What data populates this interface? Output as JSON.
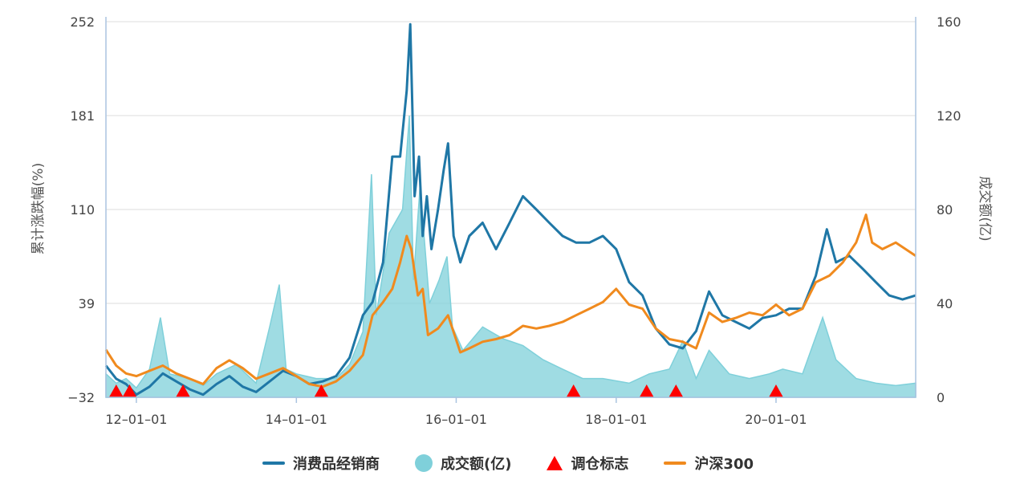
{
  "colors": {
    "industry": "#1f77a6",
    "volume": "#7fd0da",
    "marker": "#ff0000",
    "hs300": "#f08a1e",
    "grid": "#dddddd",
    "axis": "#aac4e0"
  },
  "legend": {
    "industry": "消费品经销商",
    "volume": "成交额(亿)",
    "marker": "调仓标志",
    "hs300": "沪深300"
  },
  "chart_data": {
    "type": "line",
    "ylabel_left": "累计涨跌幅(%)",
    "ylabel_right": "成交额(亿)",
    "left_ticks": [
      "252",
      "181",
      "110",
      "39",
      "−32"
    ],
    "right_ticks": [
      "160",
      "120",
      "80",
      "40",
      "0"
    ],
    "left_range": [
      -32,
      252
    ],
    "right_range": [
      0,
      160
    ],
    "x_ticks": [
      {
        "label": "12–01–01",
        "date": "2012-01-01"
      },
      {
        "label": "14–01–01",
        "date": "2014-01-01"
      },
      {
        "label": "16–01–01",
        "date": "2016-01-01"
      },
      {
        "label": "18–01–01",
        "date": "2018-01-01"
      },
      {
        "label": "20–01–01",
        "date": "2020-01-01"
      }
    ],
    "x_range": [
      "2011-08-15",
      "2021-09-30"
    ],
    "series": [
      {
        "name": "消费品经销商",
        "axis": "left",
        "points": [
          [
            "2011-08-15",
            -8
          ],
          [
            "2011-10-01",
            -18
          ],
          [
            "2011-11-15",
            -22
          ],
          [
            "2012-01-01",
            -30
          ],
          [
            "2012-03-01",
            -24
          ],
          [
            "2012-05-01",
            -14
          ],
          [
            "2012-07-01",
            -20
          ],
          [
            "2012-09-01",
            -26
          ],
          [
            "2012-11-01",
            -30
          ],
          [
            "2013-01-01",
            -22
          ],
          [
            "2013-03-01",
            -16
          ],
          [
            "2013-05-01",
            -24
          ],
          [
            "2013-07-01",
            -28
          ],
          [
            "2013-09-01",
            -20
          ],
          [
            "2013-11-01",
            -12
          ],
          [
            "2014-01-01",
            -16
          ],
          [
            "2014-03-01",
            -22
          ],
          [
            "2014-05-01",
            -20
          ],
          [
            "2014-07-01",
            -16
          ],
          [
            "2014-09-01",
            -2
          ],
          [
            "2014-11-01",
            30
          ],
          [
            "2014-12-15",
            40
          ],
          [
            "2015-02-01",
            70
          ],
          [
            "2015-03-15",
            150
          ],
          [
            "2015-04-20",
            150
          ],
          [
            "2015-05-20",
            200
          ],
          [
            "2015-06-05",
            250
          ],
          [
            "2015-06-25",
            120
          ],
          [
            "2015-07-15",
            150
          ],
          [
            "2015-08-01",
            90
          ],
          [
            "2015-08-20",
            120
          ],
          [
            "2015-09-10",
            80
          ],
          [
            "2015-10-10",
            110
          ],
          [
            "2015-11-05",
            140
          ],
          [
            "2015-11-25",
            160
          ],
          [
            "2015-12-20",
            90
          ],
          [
            "2016-01-20",
            70
          ],
          [
            "2016-03-01",
            90
          ],
          [
            "2016-05-01",
            100
          ],
          [
            "2016-07-01",
            80
          ],
          [
            "2016-09-01",
            100
          ],
          [
            "2016-11-01",
            120
          ],
          [
            "2017-01-01",
            110
          ],
          [
            "2017-03-01",
            100
          ],
          [
            "2017-05-01",
            90
          ],
          [
            "2017-07-01",
            85
          ],
          [
            "2017-09-01",
            85
          ],
          [
            "2017-11-01",
            90
          ],
          [
            "2018-01-01",
            80
          ],
          [
            "2018-03-01",
            55
          ],
          [
            "2018-05-01",
            45
          ],
          [
            "2018-07-01",
            20
          ],
          [
            "2018-09-01",
            8
          ],
          [
            "2018-11-01",
            5
          ],
          [
            "2019-01-01",
            18
          ],
          [
            "2019-03-01",
            48
          ],
          [
            "2019-05-01",
            30
          ],
          [
            "2019-07-01",
            25
          ],
          [
            "2019-09-01",
            20
          ],
          [
            "2019-11-01",
            28
          ],
          [
            "2020-01-01",
            30
          ],
          [
            "2020-03-01",
            35
          ],
          [
            "2020-05-01",
            35
          ],
          [
            "2020-07-01",
            60
          ],
          [
            "2020-08-20",
            95
          ],
          [
            "2020-10-01",
            70
          ],
          [
            "2020-12-01",
            75
          ],
          [
            "2021-02-01",
            65
          ],
          [
            "2021-04-01",
            55
          ],
          [
            "2021-06-01",
            45
          ],
          [
            "2021-08-01",
            42
          ],
          [
            "2021-09-30",
            45
          ]
        ]
      },
      {
        "name": "沪深300",
        "axis": "left",
        "points": [
          [
            "2011-08-15",
            4
          ],
          [
            "2011-10-01",
            -8
          ],
          [
            "2011-11-15",
            -14
          ],
          [
            "2012-01-01",
            -16
          ],
          [
            "2012-03-01",
            -12
          ],
          [
            "2012-05-01",
            -8
          ],
          [
            "2012-07-01",
            -14
          ],
          [
            "2012-09-01",
            -18
          ],
          [
            "2012-11-01",
            -22
          ],
          [
            "2013-01-01",
            -10
          ],
          [
            "2013-03-01",
            -4
          ],
          [
            "2013-05-01",
            -10
          ],
          [
            "2013-07-01",
            -18
          ],
          [
            "2013-09-01",
            -14
          ],
          [
            "2013-11-01",
            -10
          ],
          [
            "2014-01-01",
            -16
          ],
          [
            "2014-03-01",
            -22
          ],
          [
            "2014-05-01",
            -24
          ],
          [
            "2014-07-01",
            -20
          ],
          [
            "2014-09-01",
            -12
          ],
          [
            "2014-11-01",
            0
          ],
          [
            "2014-12-15",
            30
          ],
          [
            "2015-02-01",
            40
          ],
          [
            "2015-03-15",
            50
          ],
          [
            "2015-04-20",
            70
          ],
          [
            "2015-05-20",
            90
          ],
          [
            "2015-06-10",
            80
          ],
          [
            "2015-07-10",
            45
          ],
          [
            "2015-08-01",
            50
          ],
          [
            "2015-08-25",
            15
          ],
          [
            "2015-10-10",
            20
          ],
          [
            "2015-11-25",
            30
          ],
          [
            "2016-01-20",
            2
          ],
          [
            "2016-03-01",
            5
          ],
          [
            "2016-05-01",
            10
          ],
          [
            "2016-07-01",
            12
          ],
          [
            "2016-09-01",
            15
          ],
          [
            "2016-11-01",
            22
          ],
          [
            "2017-01-01",
            20
          ],
          [
            "2017-03-01",
            22
          ],
          [
            "2017-05-01",
            25
          ],
          [
            "2017-07-01",
            30
          ],
          [
            "2017-09-01",
            35
          ],
          [
            "2017-11-01",
            40
          ],
          [
            "2018-01-01",
            50
          ],
          [
            "2018-03-01",
            38
          ],
          [
            "2018-05-01",
            35
          ],
          [
            "2018-07-01",
            20
          ],
          [
            "2018-09-01",
            12
          ],
          [
            "2018-11-01",
            10
          ],
          [
            "2019-01-01",
            5
          ],
          [
            "2019-03-01",
            32
          ],
          [
            "2019-05-01",
            25
          ],
          [
            "2019-07-01",
            28
          ],
          [
            "2019-09-01",
            32
          ],
          [
            "2019-11-01",
            30
          ],
          [
            "2020-01-01",
            38
          ],
          [
            "2020-03-01",
            30
          ],
          [
            "2020-05-01",
            35
          ],
          [
            "2020-07-01",
            55
          ],
          [
            "2020-09-01",
            60
          ],
          [
            "2020-11-01",
            70
          ],
          [
            "2021-01-01",
            85
          ],
          [
            "2021-02-15",
            106
          ],
          [
            "2021-03-15",
            85
          ],
          [
            "2021-05-01",
            80
          ],
          [
            "2021-07-01",
            85
          ],
          [
            "2021-09-30",
            75
          ]
        ]
      },
      {
        "name": "成交额(亿)",
        "type": "area",
        "axis": "right",
        "points": [
          [
            "2011-08-15",
            10
          ],
          [
            "2011-10-01",
            6
          ],
          [
            "2011-11-15",
            8
          ],
          [
            "2012-01-01",
            4
          ],
          [
            "2012-03-01",
            12
          ],
          [
            "2012-04-20",
            34
          ],
          [
            "2012-06-01",
            10
          ],
          [
            "2012-09-01",
            8
          ],
          [
            "2012-11-01",
            5
          ],
          [
            "2013-01-01",
            10
          ],
          [
            "2013-04-01",
            14
          ],
          [
            "2013-07-01",
            6
          ],
          [
            "2013-09-01",
            30
          ],
          [
            "2013-10-15",
            48
          ],
          [
            "2013-11-15",
            12
          ],
          [
            "2014-01-01",
            10
          ],
          [
            "2014-04-01",
            8
          ],
          [
            "2014-07-01",
            8
          ],
          [
            "2014-09-01",
            14
          ],
          [
            "2014-11-01",
            28
          ],
          [
            "2014-12-10",
            95
          ],
          [
            "2015-01-01",
            35
          ],
          [
            "2015-03-01",
            70
          ],
          [
            "2015-05-01",
            80
          ],
          [
            "2015-06-01",
            120
          ],
          [
            "2015-06-20",
            50
          ],
          [
            "2015-07-20",
            90
          ],
          [
            "2015-09-01",
            40
          ],
          [
            "2015-10-15",
            50
          ],
          [
            "2015-11-20",
            60
          ],
          [
            "2015-12-15",
            30
          ],
          [
            "2016-02-01",
            20
          ],
          [
            "2016-05-01",
            30
          ],
          [
            "2016-08-01",
            25
          ],
          [
            "2016-11-01",
            22
          ],
          [
            "2017-02-01",
            16
          ],
          [
            "2017-05-01",
            12
          ],
          [
            "2017-08-01",
            8
          ],
          [
            "2017-11-01",
            8
          ],
          [
            "2018-03-01",
            6
          ],
          [
            "2018-06-01",
            10
          ],
          [
            "2018-09-01",
            12
          ],
          [
            "2018-11-01",
            24
          ],
          [
            "2019-01-01",
            8
          ],
          [
            "2019-03-01",
            20
          ],
          [
            "2019-06-01",
            10
          ],
          [
            "2019-09-01",
            8
          ],
          [
            "2019-12-01",
            10
          ],
          [
            "2020-02-01",
            12
          ],
          [
            "2020-05-01",
            10
          ],
          [
            "2020-08-01",
            34
          ],
          [
            "2020-10-01",
            16
          ],
          [
            "2021-01-01",
            8
          ],
          [
            "2021-04-01",
            6
          ],
          [
            "2021-07-01",
            5
          ],
          [
            "2021-09-30",
            6
          ]
        ]
      }
    ],
    "markers": {
      "name": "调仓标志",
      "dates": [
        "2011-10-01",
        "2011-12-01",
        "2012-08-01",
        "2014-04-25",
        "2017-06-20",
        "2018-05-20",
        "2018-10-01",
        "2020-01-01"
      ]
    }
  }
}
